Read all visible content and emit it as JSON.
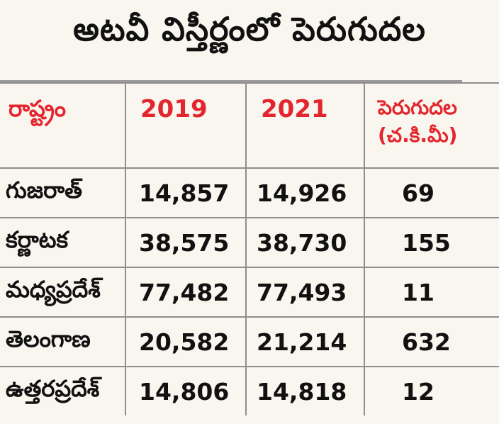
{
  "title": "అటవీ విస్తీర్ణంలో పెరుగుదల",
  "table": {
    "headers": {
      "state": "రాష్ట్రం",
      "year1": "2019",
      "year2": "2021",
      "change_line1": "పెరుగుదల",
      "change_line2": "(చ.కి.మీ)"
    },
    "rows": [
      {
        "state": "గుజరాత్",
        "y2019": "14,857",
        "y2021": "14,926",
        "change": "69"
      },
      {
        "state": "కర్ణాటక",
        "y2019": "38,575",
        "y2021": "38,730",
        "change": "155"
      },
      {
        "state": "మధ్యప్రదేశ్",
        "y2019": "77,482",
        "y2021": "77,493",
        "change": "11"
      },
      {
        "state": "తెలంగాణ",
        "y2019": "20,582",
        "y2021": "21,214",
        "change": "632"
      },
      {
        "state": "ఉత్తరప్రదేశ్",
        "y2019": "14,806",
        "y2021": "14,818",
        "change": "12"
      }
    ]
  },
  "colors": {
    "header_text": "#e3262d",
    "body_text": "#111111",
    "background": "#f9f6ef",
    "grid": "#8e8e8e"
  }
}
